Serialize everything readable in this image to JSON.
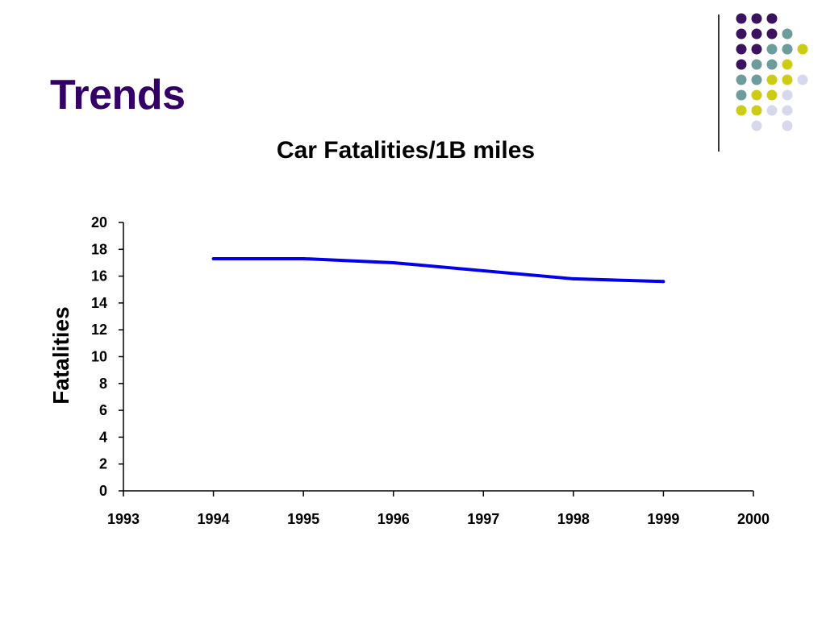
{
  "slide": {
    "title": "Trends"
  },
  "decoration": {
    "dot_colors": {
      "purple": "#3b125f",
      "teal": "#6e9b9b",
      "yellow": "#cccc14",
      "lavender": "#d8d8ec"
    },
    "dot_grid": [
      [
        "purple",
        "purple",
        "purple",
        null,
        null
      ],
      [
        "purple",
        "purple",
        "purple",
        "teal",
        null
      ],
      [
        "purple",
        "purple",
        "teal",
        "teal",
        "yellow"
      ],
      [
        "purple",
        "teal",
        "teal",
        "yellow",
        null
      ],
      [
        "teal",
        "teal",
        "yellow",
        "yellow",
        "lavender"
      ],
      [
        "teal",
        "yellow",
        "yellow",
        "lavender",
        null
      ],
      [
        "yellow",
        "yellow",
        "lavender",
        "lavender",
        null
      ],
      [
        null,
        "lavender",
        null,
        "lavender",
        null
      ]
    ],
    "divider_color": "#333333"
  },
  "chart_data": {
    "type": "line",
    "title": "Car Fatalities/1B miles",
    "xlabel": "",
    "ylabel": "Fatalities",
    "xlim": [
      1993,
      2000
    ],
    "ylim": [
      0,
      20
    ],
    "x_ticks": [
      1993,
      1994,
      1995,
      1996,
      1997,
      1998,
      1999,
      2000
    ],
    "y_ticks": [
      0,
      2,
      4,
      6,
      8,
      10,
      12,
      14,
      16,
      18,
      20
    ],
    "grid": false,
    "legend": "none",
    "series": [
      {
        "color": "#0000ee",
        "x": [
          1994,
          1995,
          1996,
          1997,
          1998,
          1999
        ],
        "y": [
          17.3,
          17.3,
          17.0,
          16.4,
          15.8,
          15.6
        ]
      }
    ]
  }
}
